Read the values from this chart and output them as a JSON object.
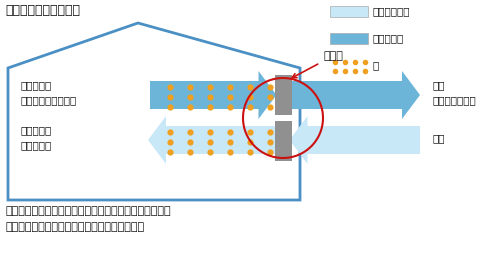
{
  "title": "冬の熱交換イメージ図",
  "bottom_text_1": "給気と排気の熱を交換することで、冷暖房の効率を高め",
  "bottom_text_2": "熱を逃がさずにキレイな空気環境を保ちます。",
  "legend_items": [
    "キレイな空気",
    "汚れた空気",
    "熱"
  ],
  "label_exhaust": "排気と共に\n逃げる熱エネルギー",
  "label_warm": "暖められた\n新鮮な空気",
  "label_supply": "給気\n（新鮮な空気）",
  "label_exhaust_out": "排気",
  "label_exchanger": "熱交換",
  "color_clean": "#c8e8f8",
  "color_dirty": "#6cb4d8",
  "color_heat": "#f0a020",
  "color_house": "#4a90c4",
  "color_exchanger": "#909090",
  "color_circle": "#cc1111",
  "color_text": "#111111",
  "color_arrow_annot": "#cc1111",
  "bg_color": "#ffffff"
}
